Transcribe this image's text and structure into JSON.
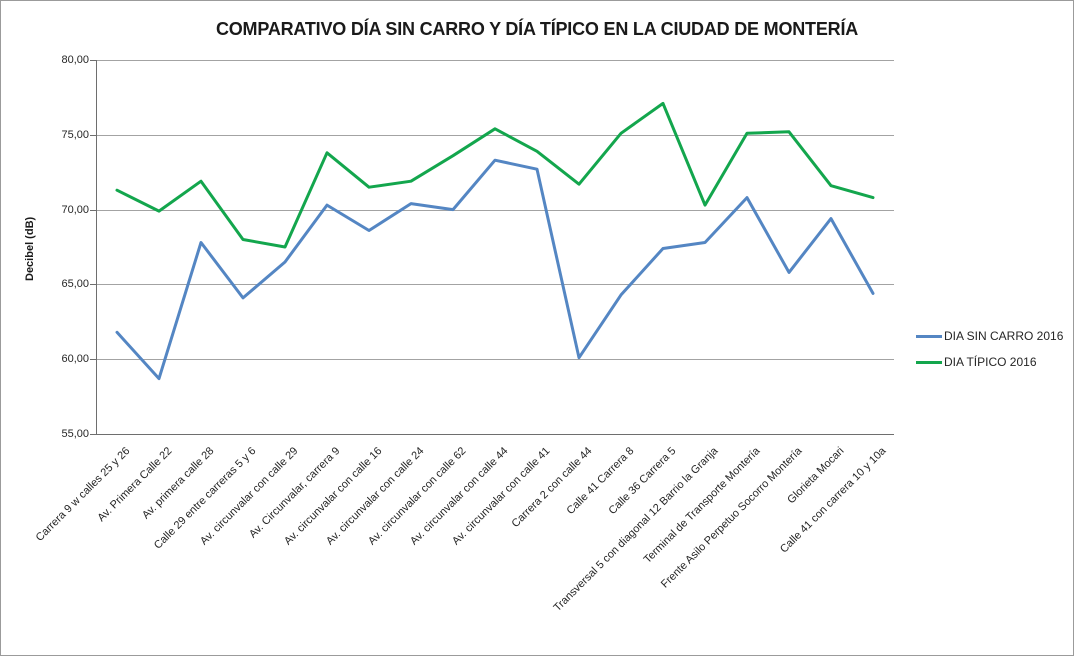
{
  "chart_data": {
    "type": "line",
    "title": "COMPARATIVO DÍA SIN CARRO Y DÍA TÍPICO EN LA CIUDAD DE MONTERÍA",
    "xlabel": "",
    "ylabel": "Decibel (dB)",
    "ylim": [
      55,
      80
    ],
    "ytick_step": 5,
    "ytick_labels": [
      "80,00",
      "75,00",
      "70,00",
      "65,00",
      "60,00",
      "55,00"
    ],
    "grid": true,
    "legend_position": "right",
    "categories": [
      "Carrera 9 w calles 25 y 26",
      "Av. Primera Calle 22",
      "Av. primera calle 28",
      "Calle 29 entre carreras 5 y 6",
      "Av. circunvalar con calle 29",
      "Av. Circunvalar, carrera 9",
      "Av. circunvalar con calle 16",
      "Av. circunvalar con calle 24",
      "Av. circunvalar con calle 62",
      "Av. circunvalar con calle 44",
      "Av. circunvalar con calle 41",
      "Carrera 2 con calle 44",
      "Calle 41 Carrera 8",
      "Calle 36 Carrera 5",
      "Transversal 5 con diagonal 12 Barrio la Granja",
      "Terminal de Transporte Montería",
      "Frente Asilo Perpetuo Socorro Montería",
      "Glorieta Mocari",
      "Calle 41 con carrera 10 y 10a"
    ],
    "series": [
      {
        "name": "DIA SIN CARRO 2016",
        "color": "#5486c3",
        "values": [
          61.8,
          58.7,
          67.8,
          64.1,
          66.5,
          70.3,
          68.6,
          70.4,
          70.0,
          73.3,
          72.7,
          60.1,
          64.3,
          67.4,
          67.8,
          70.8,
          65.8,
          69.4,
          64.4
        ]
      },
      {
        "name": "DIA TÍPICO 2016",
        "color": "#13a64d",
        "values": [
          71.3,
          69.9,
          71.9,
          68.0,
          67.5,
          73.8,
          71.5,
          71.9,
          73.6,
          75.4,
          73.9,
          71.7,
          75.1,
          77.1,
          70.3,
          75.1,
          75.2,
          71.6,
          70.8
        ]
      }
    ],
    "colors": {
      "gridline": "#a3a3a3",
      "axis": "#6e6e6e",
      "text": "#262626"
    }
  }
}
